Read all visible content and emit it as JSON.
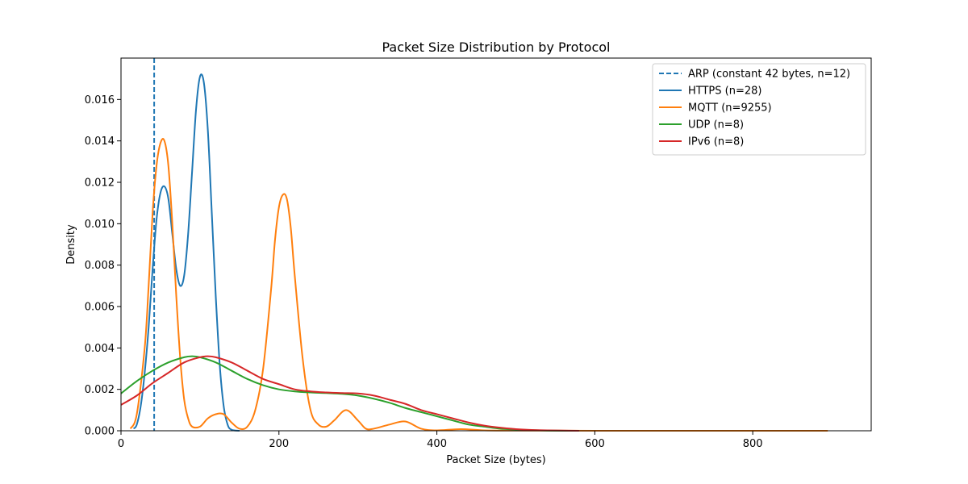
{
  "chart_data": {
    "type": "line",
    "title": "Packet Size Distribution by Protocol",
    "xlabel": "Packet Size (bytes)",
    "ylabel": "Density",
    "xlim": [
      0,
      950
    ],
    "ylim": [
      0,
      0.018
    ],
    "x_ticks": [
      0,
      200,
      400,
      600,
      800
    ],
    "y_ticks": [
      0.0,
      0.002,
      0.004,
      0.006,
      0.008,
      0.01,
      0.012,
      0.014,
      0.016
    ],
    "x_tick_labels": [
      "0",
      "200",
      "400",
      "600",
      "800"
    ],
    "y_tick_labels": [
      "0.000",
      "0.002",
      "0.004",
      "0.006",
      "0.008",
      "0.010",
      "0.012",
      "0.014",
      "0.016"
    ],
    "grid": false,
    "legend_position": "top-right",
    "vertical_lines": [
      {
        "name": "ARP (constant 42 bytes, n=12)",
        "x": 42,
        "color": "#1f77b4",
        "dash": true
      }
    ],
    "series": [
      {
        "name": "HTTPS (n=28)",
        "color": "#1f77b4",
        "x": [
          16,
          20,
          25,
          30,
          35,
          40,
          45,
          50,
          55,
          60,
          65,
          70,
          75,
          80,
          85,
          90,
          95,
          100,
          105,
          110,
          115,
          120,
          125,
          130,
          135,
          140,
          150
        ],
        "y": [
          0.0001,
          0.0003,
          0.0012,
          0.0028,
          0.005,
          0.0078,
          0.0102,
          0.0115,
          0.0118,
          0.0112,
          0.0095,
          0.0078,
          0.007,
          0.0075,
          0.0095,
          0.0125,
          0.0155,
          0.0171,
          0.0168,
          0.0145,
          0.0105,
          0.0065,
          0.0032,
          0.0012,
          0.0003,
          5e-05,
          0.0
        ]
      },
      {
        "name": "MQTT (n=9255)",
        "color": "#ff7f0e",
        "x": [
          12,
          20,
          30,
          35,
          40,
          45,
          50,
          55,
          60,
          65,
          70,
          75,
          80,
          85,
          90,
          100,
          110,
          120,
          130,
          140,
          150,
          160,
          170,
          180,
          190,
          195,
          200,
          205,
          210,
          215,
          220,
          230,
          240,
          250,
          260,
          270,
          285,
          300,
          310,
          320,
          340,
          360,
          380,
          400,
          430,
          460,
          500,
          600,
          700,
          800,
          895
        ],
        "y": [
          0.0001,
          0.0008,
          0.004,
          0.007,
          0.0105,
          0.0128,
          0.0139,
          0.014,
          0.0128,
          0.01,
          0.0065,
          0.0035,
          0.0015,
          0.0006,
          0.0002,
          0.0002,
          0.0006,
          0.0008,
          0.0008,
          0.0004,
          0.0001,
          0.0002,
          0.001,
          0.003,
          0.0068,
          0.0092,
          0.0108,
          0.0114,
          0.0112,
          0.0098,
          0.0075,
          0.0035,
          0.001,
          0.0003,
          0.0002,
          0.0005,
          0.001,
          0.0005,
          0.0001,
          0.0001,
          0.0003,
          0.00045,
          0.0001,
          2e-05,
          8e-05,
          2e-05,
          1e-05,
          0.0,
          0.0,
          0.0,
          0.0
        ]
      },
      {
        "name": "UDP (n=8)",
        "color": "#2ca02c",
        "x": [
          0,
          20,
          40,
          60,
          80,
          90,
          100,
          120,
          140,
          160,
          180,
          200,
          220,
          240,
          260,
          280,
          300,
          320,
          340,
          360,
          380,
          400,
          420,
          440,
          460,
          480,
          500,
          520,
          540,
          560,
          580
        ],
        "y": [
          0.0018,
          0.0024,
          0.0029,
          0.0033,
          0.00355,
          0.0036,
          0.00355,
          0.0033,
          0.0029,
          0.0025,
          0.0022,
          0.002,
          0.0019,
          0.00185,
          0.00182,
          0.00178,
          0.0017,
          0.00155,
          0.00135,
          0.0011,
          0.0009,
          0.0007,
          0.0005,
          0.0003,
          0.0002,
          0.0001,
          6e-05,
          3e-05,
          1e-05,
          0.0,
          0.0
        ]
      },
      {
        "name": "IPv6 (n=8)",
        "color": "#d62728",
        "x": [
          0,
          20,
          40,
          60,
          80,
          100,
          110,
          120,
          140,
          160,
          180,
          200,
          220,
          240,
          260,
          280,
          300,
          320,
          340,
          360,
          380,
          400,
          420,
          440,
          460,
          480,
          500,
          520,
          540,
          560,
          580
        ],
        "y": [
          0.00125,
          0.0017,
          0.0023,
          0.0028,
          0.0033,
          0.00355,
          0.0036,
          0.00355,
          0.0033,
          0.0029,
          0.0025,
          0.00225,
          0.002,
          0.0019,
          0.00185,
          0.00182,
          0.0018,
          0.0017,
          0.0015,
          0.0013,
          0.001,
          0.0008,
          0.0006,
          0.0004,
          0.00025,
          0.00015,
          8e-05,
          4e-05,
          2e-05,
          1e-05,
          0.0
        ]
      }
    ]
  }
}
